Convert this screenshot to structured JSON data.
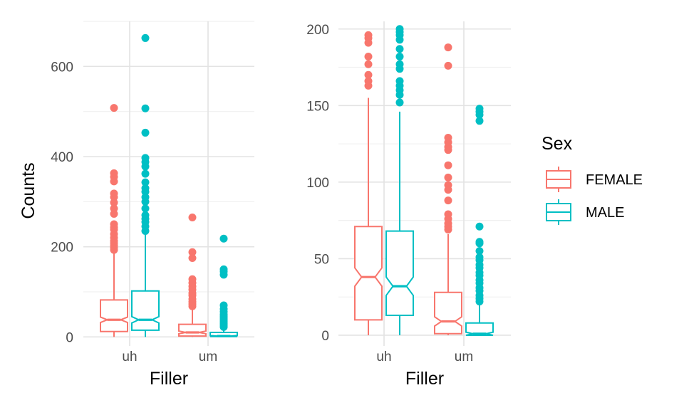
{
  "colors": {
    "FEMALE": "#F8766D",
    "MALE": "#00BFC4",
    "grid_major": "#e3e3e3",
    "grid_minor": "#f0f0f0"
  },
  "legend": {
    "title": "Sex",
    "items": [
      {
        "label": "FEMALE",
        "color": "#F8766D"
      },
      {
        "label": "MALE",
        "color": "#00BFC4"
      }
    ]
  },
  "chart_data": [
    {
      "type": "boxplot",
      "notched": true,
      "xlabel": "Filler",
      "ylabel": "Counts",
      "ylim": [
        -20,
        700
      ],
      "yticks": [
        0,
        200,
        400,
        600
      ],
      "categories": [
        "uh",
        "um"
      ],
      "grid": true,
      "series": [
        {
          "name": "FEMALE",
          "boxes": [
            {
              "category": "uh",
              "whisker_low": 0,
              "q1": 12,
              "median": 38,
              "q3": 82,
              "whisker_high": 185,
              "notch": [
                32,
                44
              ],
              "outliers": [
                193,
                198,
                203,
                208,
                213,
                220,
                228,
                238,
                243,
                250,
                273,
                285,
                298,
                310,
                318,
                345,
                355,
                363,
                508
              ]
            },
            {
              "category": "um",
              "whisker_low": 0,
              "q1": 2,
              "median": 10,
              "q3": 28,
              "whisker_high": 60,
              "notch": [
                7,
                13
              ],
              "outliers": [
                68,
                73,
                78,
                84,
                92,
                97,
                105,
                112,
                120,
                128,
                175,
                188,
                265
              ]
            }
          ]
        },
        {
          "name": "MALE",
          "boxes": [
            {
              "category": "uh",
              "whisker_low": 0,
              "q1": 15,
              "median": 38,
              "q3": 102,
              "whisker_high": 228,
              "notch": [
                31,
                45
              ],
              "outliers": [
                235,
                245,
                255,
                262,
                270,
                285,
                300,
                310,
                322,
                330,
                343,
                362,
                378,
                388,
                397,
                453,
                507,
                663
              ]
            },
            {
              "category": "um",
              "whisker_low": 0,
              "q1": 1,
              "median": 2,
              "q3": 10,
              "whisker_high": 20,
              "notch": [
                1,
                3
              ],
              "outliers": [
                22,
                26,
                30,
                34,
                38,
                42,
                46,
                50,
                56,
                62,
                70,
                138,
                145,
                150,
                218
              ]
            }
          ]
        }
      ]
    },
    {
      "type": "boxplot",
      "notched": true,
      "xlabel": "Filler",
      "ylabel": "",
      "ylim": [
        -7,
        205
      ],
      "yticks": [
        0,
        50,
        100,
        150,
        200
      ],
      "categories": [
        "uh",
        "um"
      ],
      "grid": true,
      "series": [
        {
          "name": "FEMALE",
          "boxes": [
            {
              "category": "uh",
              "whisker_low": 0,
              "q1": 10,
              "median": 38,
              "q3": 71,
              "whisker_high": 155,
              "notch": [
                32,
                44
              ],
              "outliers": [
                163,
                166,
                170,
                177,
                182,
                191,
                194,
                196
              ]
            },
            {
              "category": "um",
              "whisker_low": 0,
              "q1": 1,
              "median": 9,
              "q3": 28,
              "whisker_high": 66,
              "notch": [
                6,
                12
              ],
              "outliers": [
                69,
                71,
                73,
                76,
                79,
                88,
                95,
                98,
                103,
                111,
                121,
                123,
                126,
                129,
                176,
                188
              ]
            }
          ]
        },
        {
          "name": "MALE",
          "boxes": [
            {
              "category": "uh",
              "whisker_low": 0,
              "q1": 13,
              "median": 32,
              "q3": 68,
              "whisker_high": 146,
              "notch": [
                26,
                38
              ],
              "outliers": [
                152,
                157,
                160,
                163,
                166,
                174,
                177,
                182,
                187,
                193,
                196,
                198,
                200
              ]
            },
            {
              "category": "um",
              "whisker_low": 0,
              "q1": 0,
              "median": 1,
              "q3": 8,
              "whisker_high": 20,
              "notch": [
                0,
                2
              ],
              "outliers": [
                22,
                24,
                26,
                29,
                31,
                34,
                36,
                39,
                41,
                44,
                46,
                49,
                51,
                55,
                60,
                61,
                71,
                140,
                144,
                146,
                148
              ]
            }
          ]
        }
      ]
    }
  ]
}
